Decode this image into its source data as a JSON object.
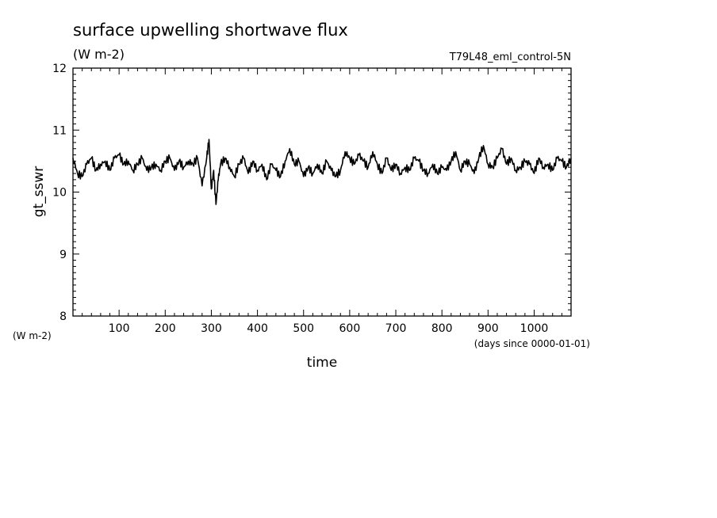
{
  "chart_data": {
    "type": "line",
    "title": "surface upwelling shortwave flux",
    "title_units": "(W m-2)",
    "run_label": "T79L48_eml_control-5N",
    "xlabel": "time",
    "xunits": "(days since 0000-01-01)",
    "ylabel": "gt_sswr",
    "yunits": "(W m-2)",
    "xlim": [
      0,
      1080
    ],
    "ylim": [
      8,
      12
    ],
    "x_ticks": [
      100,
      200,
      300,
      400,
      500,
      600,
      700,
      800,
      900,
      1000
    ],
    "y_ticks": [
      8,
      9,
      10,
      11,
      12
    ],
    "grid": false,
    "series": [
      {
        "x": [
          0,
          10,
          20,
          30,
          40,
          50,
          60,
          70,
          80,
          90,
          100,
          110,
          120,
          130,
          140,
          150,
          160,
          170,
          180,
          190,
          200,
          210,
          220,
          230,
          240,
          250,
          260,
          270,
          280,
          290,
          295,
          300,
          305,
          310,
          315,
          320,
          330,
          340,
          350,
          360,
          370,
          380,
          390,
          400,
          410,
          420,
          430,
          440,
          450,
          460,
          470,
          480,
          490,
          500,
          510,
          520,
          530,
          540,
          550,
          560,
          570,
          580,
          590,
          600,
          610,
          620,
          630,
          640,
          650,
          660,
          670,
          680,
          690,
          700,
          710,
          720,
          730,
          740,
          750,
          760,
          770,
          780,
          790,
          800,
          810,
          820,
          830,
          840,
          850,
          860,
          870,
          880,
          890,
          900,
          910,
          920,
          930,
          940,
          950,
          960,
          970,
          980,
          990,
          1000,
          1010,
          1020,
          1030,
          1040,
          1050,
          1060,
          1070,
          1080
        ],
        "y": [
          10.55,
          10.3,
          10.25,
          10.45,
          10.55,
          10.35,
          10.45,
          10.5,
          10.35,
          10.55,
          10.6,
          10.45,
          10.5,
          10.35,
          10.45,
          10.55,
          10.35,
          10.4,
          10.45,
          10.35,
          10.5,
          10.55,
          10.35,
          10.5,
          10.4,
          10.5,
          10.45,
          10.55,
          10.1,
          10.55,
          10.85,
          10.05,
          10.35,
          9.8,
          10.2,
          10.45,
          10.55,
          10.4,
          10.25,
          10.45,
          10.55,
          10.3,
          10.5,
          10.35,
          10.45,
          10.2,
          10.45,
          10.35,
          10.25,
          10.5,
          10.7,
          10.45,
          10.5,
          10.25,
          10.4,
          10.3,
          10.45,
          10.3,
          10.5,
          10.35,
          10.25,
          10.35,
          10.65,
          10.55,
          10.45,
          10.6,
          10.5,
          10.4,
          10.65,
          10.45,
          10.3,
          10.55,
          10.35,
          10.45,
          10.3,
          10.4,
          10.35,
          10.55,
          10.5,
          10.35,
          10.3,
          10.45,
          10.3,
          10.4,
          10.35,
          10.5,
          10.65,
          10.35,
          10.5,
          10.45,
          10.3,
          10.55,
          10.75,
          10.45,
          10.4,
          10.55,
          10.7,
          10.45,
          10.55,
          10.35,
          10.4,
          10.5,
          10.45,
          10.3,
          10.55,
          10.4,
          10.45,
          10.35,
          10.55,
          10.5,
          10.4,
          10.55
        ]
      }
    ]
  }
}
